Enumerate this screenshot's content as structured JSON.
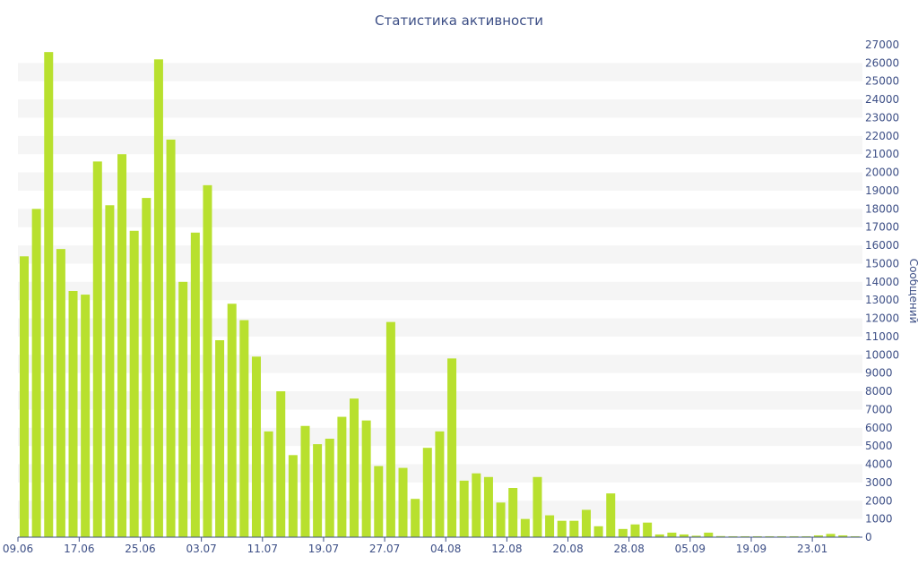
{
  "chart_data": {
    "type": "bar",
    "title": "Статистика активности",
    "xlabel": "",
    "ylabel": "Сообщений",
    "ylim": [
      0,
      27000
    ],
    "y_ticks": [
      0,
      1000,
      2000,
      3000,
      4000,
      5000,
      6000,
      7000,
      8000,
      9000,
      10000,
      11000,
      12000,
      13000,
      14000,
      15000,
      16000,
      17000,
      18000,
      19000,
      20000,
      21000,
      22000,
      23000,
      24000,
      25000,
      26000,
      27000
    ],
    "y_axis_side": "right",
    "grid": "alternating horizontal bands",
    "x_tick_labels": [
      {
        "label": "09.06",
        "index": 0
      },
      {
        "label": "17.06",
        "index": 5
      },
      {
        "label": "25.06",
        "index": 10
      },
      {
        "label": "03.07",
        "index": 15
      },
      {
        "label": "11.07",
        "index": 20
      },
      {
        "label": "19.07",
        "index": 25
      },
      {
        "label": "27.07",
        "index": 30
      },
      {
        "label": "04.08",
        "index": 35
      },
      {
        "label": "12.08",
        "index": 40
      },
      {
        "label": "20.08",
        "index": 45
      },
      {
        "label": "28.08",
        "index": 50
      },
      {
        "label": "05.09",
        "index": 55
      },
      {
        "label": "19.09",
        "index": 60
      },
      {
        "label": "23.01",
        "index": 65
      }
    ],
    "values": [
      15400,
      18000,
      26600,
      15800,
      13500,
      13300,
      20600,
      18200,
      21000,
      16800,
      18600,
      26200,
      21800,
      14000,
      16700,
      19300,
      10800,
      12800,
      11900,
      9900,
      5800,
      8000,
      4500,
      6100,
      5100,
      5400,
      6600,
      7600,
      6400,
      3900,
      11800,
      3800,
      2100,
      4900,
      5800,
      9800,
      3100,
      3500,
      3300,
      1900,
      2700,
      1000,
      3300,
      1200,
      900,
      900,
      1500,
      600,
      2400,
      450,
      700,
      800,
      150,
      250,
      150,
      80,
      250,
      60,
      50,
      50,
      50,
      50,
      50,
      50,
      50,
      100,
      180,
      100,
      50
    ],
    "colors": {
      "bar": "#b8e02e",
      "text": "#3d4f86",
      "band": "#f5f5f5"
    }
  }
}
